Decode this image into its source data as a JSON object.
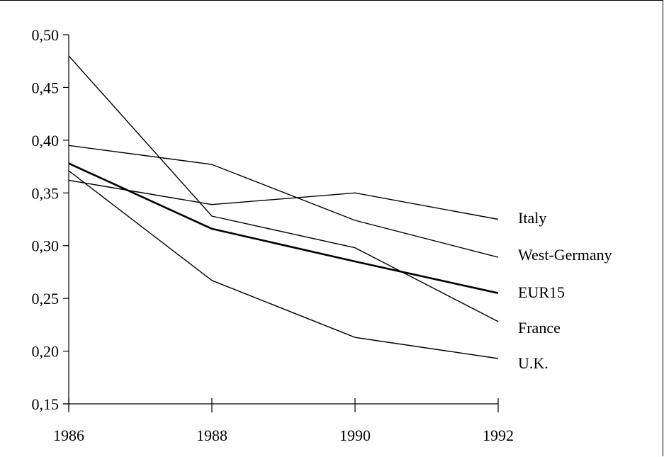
{
  "chart_data": {
    "type": "line",
    "title": "",
    "xlabel": "",
    "ylabel": "",
    "x": [
      1986,
      1988,
      1990,
      1992
    ],
    "x_tick_labels": [
      "1986",
      "1988",
      "1990",
      "1992"
    ],
    "ylim": [
      0.15,
      0.5
    ],
    "y_ticks": [
      0.15,
      0.2,
      0.25,
      0.3,
      0.35,
      0.4,
      0.45,
      0.5
    ],
    "y_tick_labels": [
      "0,15",
      "0,20",
      "0,25",
      "0,30",
      "0,35",
      "0,40",
      "0,45",
      "0,50"
    ],
    "grid": false,
    "legend": "direct labels at line ends (right)",
    "series": [
      {
        "name": "Italy",
        "values": [
          0.362,
          0.339,
          0.35,
          0.325
        ],
        "bold": false
      },
      {
        "name": "West-Germany",
        "values": [
          0.395,
          0.377,
          0.324,
          0.289
        ],
        "bold": false
      },
      {
        "name": "EUR15",
        "values": [
          0.378,
          0.316,
          0.285,
          0.255
        ],
        "bold": true
      },
      {
        "name": "France",
        "values": [
          0.48,
          0.328,
          0.298,
          0.228
        ],
        "bold": false
      },
      {
        "name": "U.K.",
        "values": [
          0.371,
          0.267,
          0.213,
          0.193
        ],
        "bold": false
      }
    ],
    "colors": {
      "line": "#000000",
      "axis": "#000000"
    }
  }
}
